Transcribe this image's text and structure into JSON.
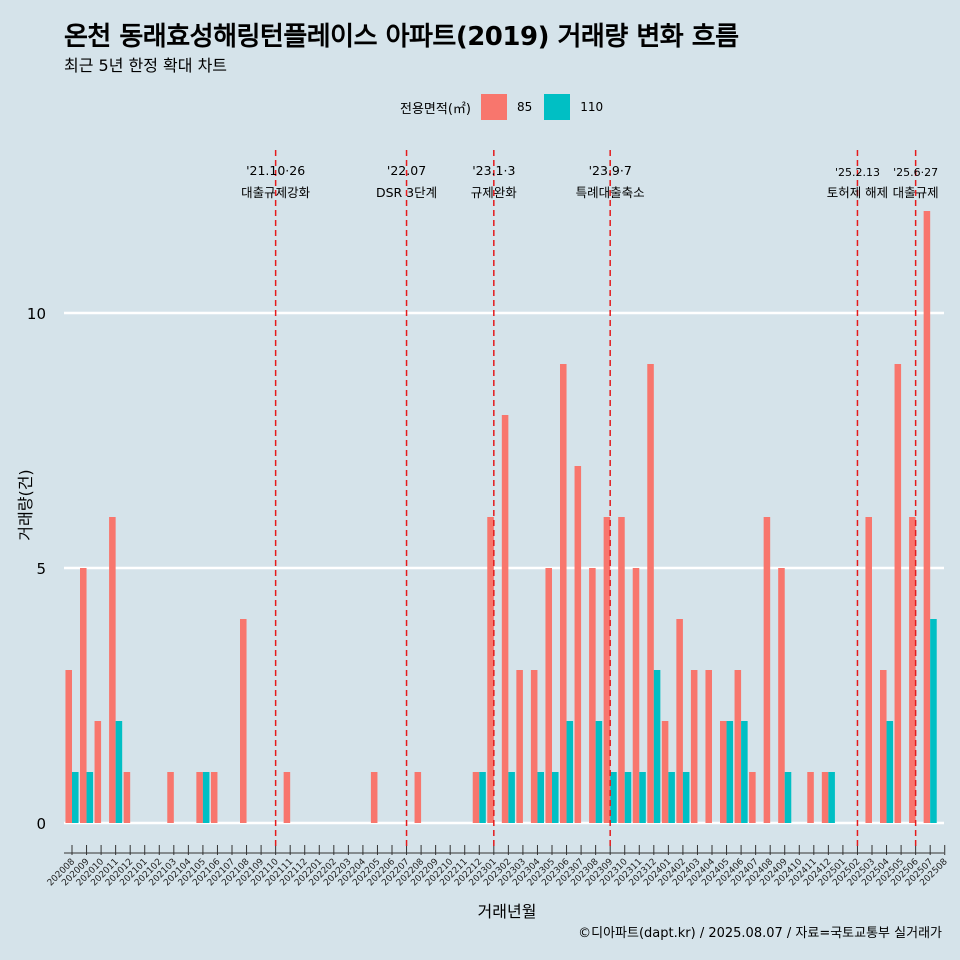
{
  "title": "온천 동래효성해링턴플레이스 아파트(2019) 거래량 변화 흐름",
  "subtitle": "최근 5년 한정 확대 차트",
  "caption": "©디아파트(dapt.kr) / 2025.08.07 / 자료=국토교통부 실거래가",
  "legend": {
    "title": "전용면적(㎡)",
    "items": [
      {
        "label": "85",
        "color": "#f8766d"
      },
      {
        "label": "110",
        "color": "#00bfc4"
      }
    ]
  },
  "chart_data": {
    "type": "bar",
    "xlabel": "거래년월",
    "ylabel": "거래량(건)",
    "ylim": [
      0,
      12.5
    ],
    "yticks": [
      0,
      5,
      10
    ],
    "grid": true,
    "categories": [
      "202008",
      "202009",
      "202010",
      "202011",
      "202012",
      "202101",
      "202102",
      "202103",
      "202104",
      "202105",
      "202106",
      "202107",
      "202108",
      "202109",
      "202110",
      "202111",
      "202112",
      "202201",
      "202202",
      "202203",
      "202204",
      "202205",
      "202206",
      "202207",
      "202208",
      "202209",
      "202210",
      "202211",
      "202212",
      "202301",
      "202302",
      "202303",
      "202304",
      "202305",
      "202306",
      "202307",
      "202308",
      "202309",
      "202310",
      "202311",
      "202312",
      "202401",
      "202402",
      "202403",
      "202404",
      "202405",
      "202406",
      "202407",
      "202408",
      "202409",
      "202410",
      "202411",
      "202412",
      "202501",
      "202502",
      "202503",
      "202504",
      "202505",
      "202506",
      "202507",
      "202508"
    ],
    "series": [
      {
        "name": "85",
        "color": "#f8766d",
        "values": [
          3,
          5,
          2,
          6,
          1,
          0,
          0,
          1,
          0,
          1,
          1,
          0,
          4,
          0,
          0,
          1,
          0,
          0,
          0,
          0,
          0,
          1,
          0,
          0,
          1,
          0,
          0,
          0,
          1,
          6,
          8,
          3,
          3,
          5,
          9,
          7,
          5,
          6,
          6,
          5,
          9,
          2,
          4,
          3,
          3,
          2,
          3,
          1,
          6,
          5,
          0,
          1,
          1,
          0,
          0,
          6,
          3,
          9,
          6,
          12,
          0
        ]
      },
      {
        "name": "110",
        "color": "#00bfc4",
        "values": [
          1,
          1,
          0,
          2,
          0,
          0,
          0,
          0,
          0,
          1,
          0,
          0,
          0,
          0,
          0,
          0,
          0,
          0,
          0,
          0,
          0,
          0,
          0,
          0,
          0,
          0,
          0,
          0,
          1,
          0,
          1,
          0,
          1,
          1,
          2,
          0,
          2,
          1,
          1,
          1,
          3,
          1,
          1,
          0,
          0,
          2,
          2,
          0,
          0,
          1,
          0,
          0,
          1,
          0,
          0,
          0,
          2,
          0,
          0,
          4,
          0
        ]
      }
    ],
    "events": [
      {
        "index": 14,
        "label_top": "'21.10·26",
        "label_bottom": "대출규제강화"
      },
      {
        "index": 23,
        "label_top": "'22.07",
        "label_bottom": "DSR 3단계"
      },
      {
        "index": 29,
        "label_top": "'23.1·3",
        "label_bottom": "규제완화"
      },
      {
        "index": 37,
        "label_top": "'23.9·7",
        "label_bottom": "특례대출축소"
      },
      {
        "index": 54,
        "label_top": "'25.2.13",
        "label_bottom": "토허제 해제"
      },
      {
        "index": 58,
        "label_top": "'25.6·27",
        "label_bottom": "대출규제"
      }
    ]
  }
}
